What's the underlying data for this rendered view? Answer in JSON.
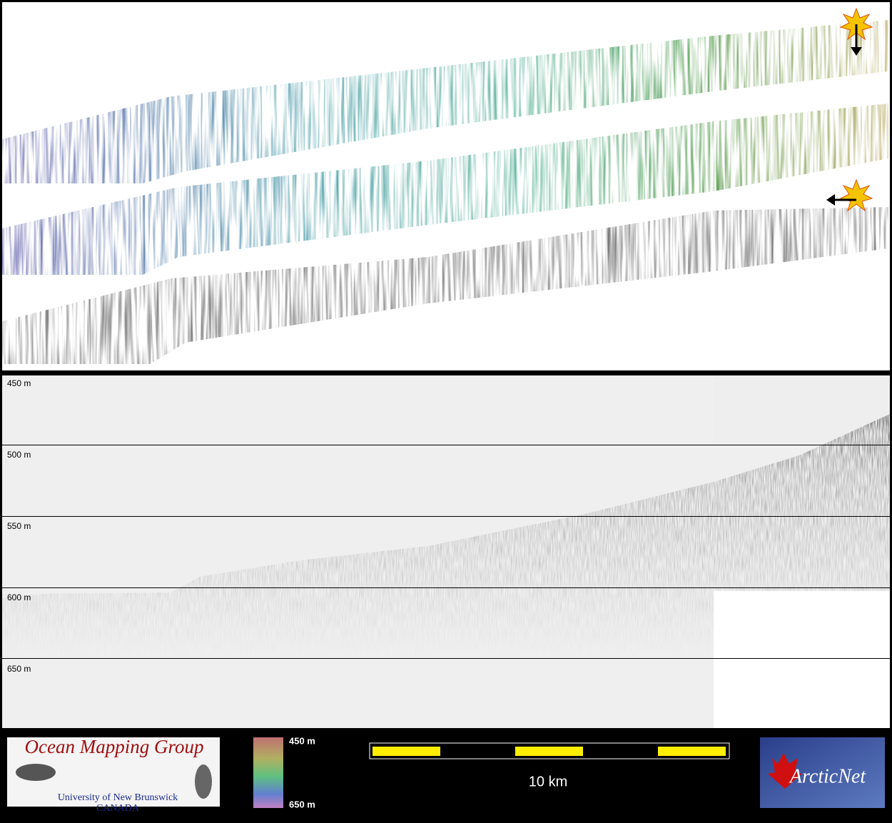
{
  "profile": {
    "depth_labels": [
      "450 m",
      "500 m",
      "550 m",
      "600 m",
      "650 m"
    ]
  },
  "footer": {
    "logo": {
      "title": "Ocean Mapping Group",
      "university": "University of New Brunswick",
      "country": "CANADA"
    },
    "colorbar": {
      "top_label": "450 m",
      "bottom_label": "650 m"
    },
    "scale_bar": {
      "label": "10 km"
    },
    "partner_logo": {
      "text": "ArcticNet"
    }
  }
}
